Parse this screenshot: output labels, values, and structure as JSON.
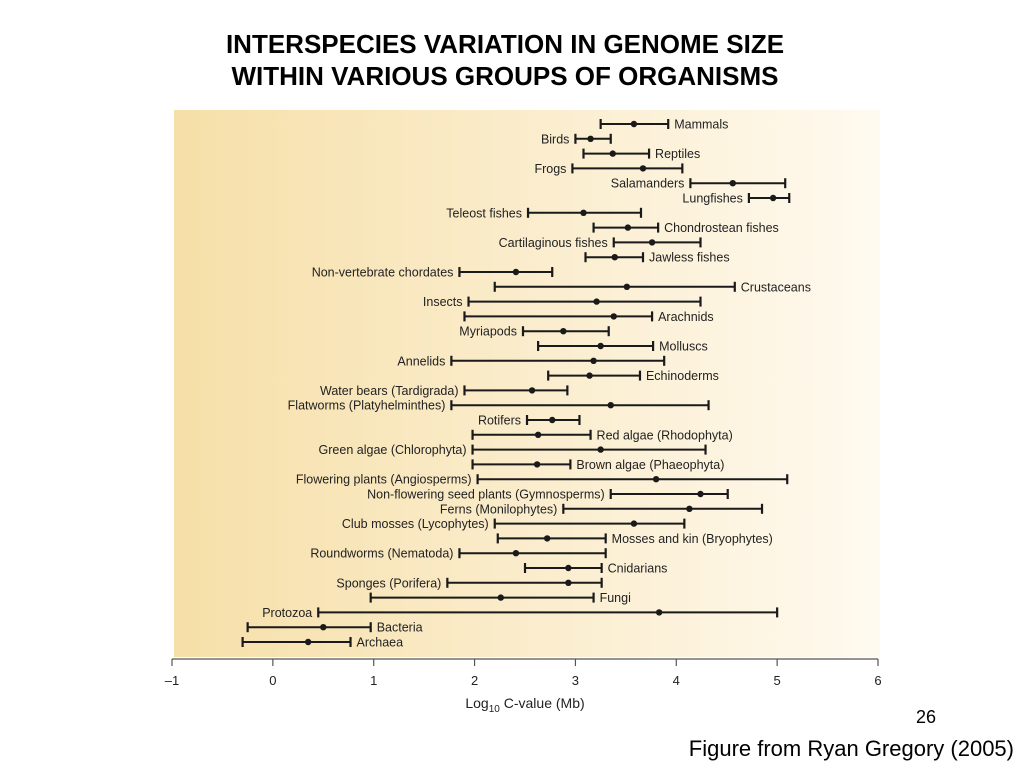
{
  "slide": {
    "title_line1": "INTERSPECIES VARIATION IN GENOME SIZE",
    "title_line2": "WITHIN VARIOUS GROUPS OF ORGANISMS",
    "page_number": "26",
    "caption": "Figure from Ryan Gregory (2005)"
  },
  "colors": {
    "background_left": "#f6dfa8",
    "background_right": "#fffaf0",
    "ink": "#1a1a1a"
  },
  "chart_data": {
    "type": "range-dot",
    "title": "",
    "xlabel_prefix": "Log",
    "xlabel_sub": "10",
    "xlabel_suffix": " C-value (Mb)",
    "xlim": [
      -1,
      6
    ],
    "ticks": [
      -1,
      0,
      1,
      2,
      3,
      4,
      5,
      6
    ],
    "tick_labels": [
      "–1",
      "0",
      "1",
      "2",
      "3",
      "4",
      "5",
      "6"
    ],
    "series": [
      {
        "name": "Mammals",
        "min": 3.25,
        "mean": 3.58,
        "max": 3.92,
        "label_side": "right"
      },
      {
        "name": "Birds",
        "min": 3.0,
        "mean": 3.15,
        "max": 3.35,
        "label_side": "left"
      },
      {
        "name": "Reptiles",
        "min": 3.08,
        "mean": 3.37,
        "max": 3.73,
        "label_side": "right"
      },
      {
        "name": "Frogs",
        "min": 2.97,
        "mean": 3.67,
        "max": 4.06,
        "label_side": "left"
      },
      {
        "name": "Salamanders",
        "min": 4.14,
        "mean": 4.56,
        "max": 5.08,
        "label_side": "left"
      },
      {
        "name": "Lungfishes",
        "min": 4.72,
        "mean": 4.96,
        "max": 5.12,
        "label_side": "left"
      },
      {
        "name": "Teleost fishes",
        "min": 2.53,
        "mean": 3.08,
        "max": 3.65,
        "label_side": "left"
      },
      {
        "name": "Chondrostean fishes",
        "min": 3.18,
        "mean": 3.52,
        "max": 3.82,
        "label_side": "right"
      },
      {
        "name": "Cartilaginous fishes",
        "min": 3.38,
        "mean": 3.76,
        "max": 4.24,
        "label_side": "left"
      },
      {
        "name": "Jawless fishes",
        "min": 3.1,
        "mean": 3.39,
        "max": 3.67,
        "label_side": "right"
      },
      {
        "name": "Non-vertebrate chordates",
        "min": 1.85,
        "mean": 2.41,
        "max": 2.77,
        "label_side": "left"
      },
      {
        "name": "Crustaceans",
        "min": 2.2,
        "mean": 3.51,
        "max": 4.58,
        "label_side": "right"
      },
      {
        "name": "Insects",
        "min": 1.94,
        "mean": 3.21,
        "max": 4.24,
        "label_side": "left"
      },
      {
        "name": "Arachnids",
        "min": 1.9,
        "mean": 3.38,
        "max": 3.76,
        "label_side": "right"
      },
      {
        "name": "Myriapods",
        "min": 2.48,
        "mean": 2.88,
        "max": 3.33,
        "label_side": "left"
      },
      {
        "name": "Molluscs",
        "min": 2.63,
        "mean": 3.25,
        "max": 3.77,
        "label_side": "right"
      },
      {
        "name": "Annelids",
        "min": 1.77,
        "mean": 3.18,
        "max": 3.88,
        "label_side": "left"
      },
      {
        "name": "Echinoderms",
        "min": 2.73,
        "mean": 3.14,
        "max": 3.64,
        "label_side": "right"
      },
      {
        "name": "Water bears (Tardigrada)",
        "min": 1.9,
        "mean": 2.57,
        "max": 2.92,
        "label_side": "left"
      },
      {
        "name": "Flatworms (Platyhelminthes)",
        "min": 1.77,
        "mean": 3.35,
        "max": 4.32,
        "label_side": "left"
      },
      {
        "name": "Rotifers",
        "min": 2.52,
        "mean": 2.77,
        "max": 3.04,
        "label_side": "left"
      },
      {
        "name": "Red algae (Rhodophyta)",
        "min": 1.98,
        "mean": 2.63,
        "max": 3.15,
        "label_side": "right"
      },
      {
        "name": "Green algae (Chlorophyta)",
        "min": 1.98,
        "mean": 3.25,
        "max": 4.29,
        "label_side": "left"
      },
      {
        "name": "Brown algae (Phaeophyta)",
        "min": 1.98,
        "mean": 2.62,
        "max": 2.95,
        "label_side": "right"
      },
      {
        "name": "Flowering plants (Angiosperms)",
        "min": 2.03,
        "mean": 3.8,
        "max": 5.1,
        "label_side": "left"
      },
      {
        "name": "Non-flowering seed plants (Gymnosperms)",
        "min": 3.35,
        "mean": 4.24,
        "max": 4.51,
        "label_side": "left"
      },
      {
        "name": "Ferns (Monilophytes)",
        "min": 2.88,
        "mean": 4.13,
        "max": 4.85,
        "label_side": "left"
      },
      {
        "name": "Club mosses (Lycophytes)",
        "min": 2.2,
        "mean": 3.58,
        "max": 4.08,
        "label_side": "left"
      },
      {
        "name": "Mosses and kin (Bryophytes)",
        "min": 2.23,
        "mean": 2.72,
        "max": 3.3,
        "label_side": "right"
      },
      {
        "name": "Roundworms (Nematoda)",
        "min": 1.85,
        "mean": 2.41,
        "max": 3.3,
        "label_side": "left"
      },
      {
        "name": "Cnidarians",
        "min": 2.5,
        "mean": 2.93,
        "max": 3.26,
        "label_side": "right"
      },
      {
        "name": "Sponges (Porifera)",
        "min": 1.73,
        "mean": 2.93,
        "max": 3.26,
        "label_side": "left"
      },
      {
        "name": "Fungi",
        "min": 0.97,
        "mean": 2.26,
        "max": 3.18,
        "label_side": "right"
      },
      {
        "name": "Protozoa",
        "min": 0.45,
        "mean": 3.83,
        "max": 5.0,
        "label_side": "left"
      },
      {
        "name": "Bacteria",
        "min": -0.25,
        "mean": 0.5,
        "max": 0.97,
        "label_side": "right"
      },
      {
        "name": "Archaea",
        "min": -0.3,
        "mean": 0.35,
        "max": 0.77,
        "label_side": "right"
      }
    ]
  }
}
